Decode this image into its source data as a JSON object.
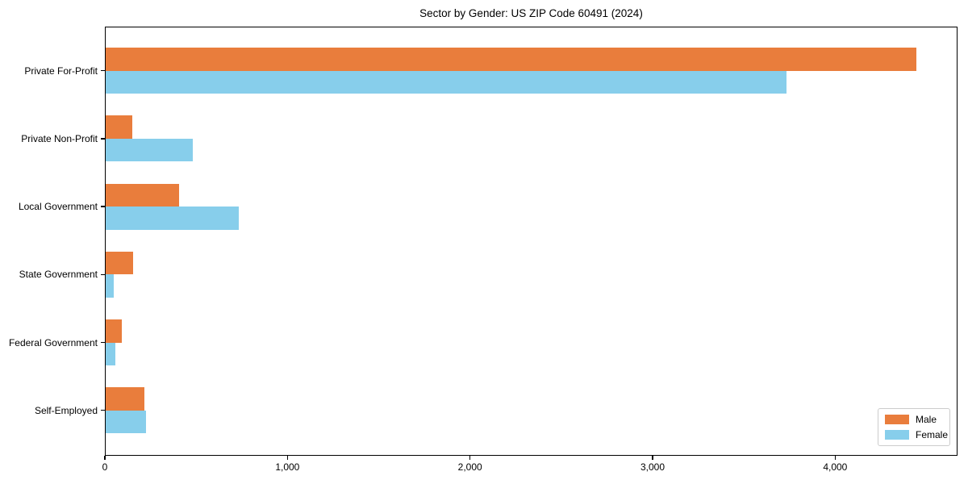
{
  "chart_data": {
    "type": "bar",
    "orientation": "horizontal",
    "title": "Sector by Gender: US ZIP Code 60491 (2024)",
    "categories": [
      "Private For-Profit",
      "Private Non-Profit",
      "Local Government",
      "State Government",
      "Federal Government",
      "Self-Employed"
    ],
    "series": [
      {
        "name": "Male",
        "color": "#e97d3c",
        "values": [
          4440,
          145,
          400,
          150,
          90,
          210
        ]
      },
      {
        "name": "Female",
        "color": "#87ceeb",
        "values": [
          3730,
          475,
          730,
          45,
          55,
          220
        ]
      }
    ],
    "xlabel": "",
    "ylabel": "",
    "xlim": [
      0,
      4670
    ],
    "xticks": [
      {
        "value": 0,
        "label": "0"
      },
      {
        "value": 1000,
        "label": "1,000"
      },
      {
        "value": 2000,
        "label": "2,000"
      },
      {
        "value": 3000,
        "label": "3,000"
      },
      {
        "value": 4000,
        "label": "4,000"
      }
    ],
    "grid": false,
    "legend": {
      "position": "lower right",
      "entries": [
        "Male",
        "Female"
      ]
    }
  },
  "colors": {
    "background": "#ffffff",
    "axis": "#000000",
    "text": "#000000",
    "legend_border": "#cccccc",
    "male": "#e97d3c",
    "female": "#87ceeb"
  }
}
